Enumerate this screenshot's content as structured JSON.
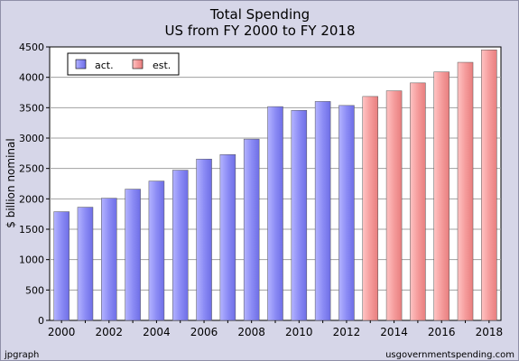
{
  "chart_data": {
    "type": "bar",
    "title": "Total Spending",
    "subtitle": "US from FY 2000 to FY 2018",
    "ylabel": "$ billion nominal",
    "xlabel": "",
    "ylim": [
      0,
      4500
    ],
    "yticks": [
      0,
      500,
      1000,
      1500,
      2000,
      2500,
      3000,
      3500,
      4000,
      4500
    ],
    "xticks": [
      "2000",
      "2002",
      "2004",
      "2006",
      "2008",
      "2010",
      "2012",
      "2014",
      "2016",
      "2018"
    ],
    "grid": true,
    "legend_position": "top-left",
    "categories": [
      "2000",
      "2001",
      "2002",
      "2003",
      "2004",
      "2005",
      "2006",
      "2007",
      "2008",
      "2009",
      "2010",
      "2011",
      "2012",
      "2013",
      "2014",
      "2015",
      "2016",
      "2017",
      "2018"
    ],
    "series": [
      {
        "name": "act.",
        "color": "#8c8cf5",
        "values": [
          1789,
          1863,
          2011,
          2160,
          2293,
          2472,
          2655,
          2729,
          2983,
          3518,
          3457,
          3603,
          3537,
          null,
          null,
          null,
          null,
          null,
          null
        ]
      },
      {
        "name": "est.",
        "color": "#f59c9c",
        "values": [
          null,
          null,
          null,
          null,
          null,
          null,
          null,
          null,
          null,
          null,
          null,
          null,
          null,
          3685,
          3778,
          3908,
          4089,
          4247,
          4452
        ]
      }
    ]
  },
  "footer": {
    "left": "jpgraph",
    "right": "usgovernmentspending.com"
  }
}
